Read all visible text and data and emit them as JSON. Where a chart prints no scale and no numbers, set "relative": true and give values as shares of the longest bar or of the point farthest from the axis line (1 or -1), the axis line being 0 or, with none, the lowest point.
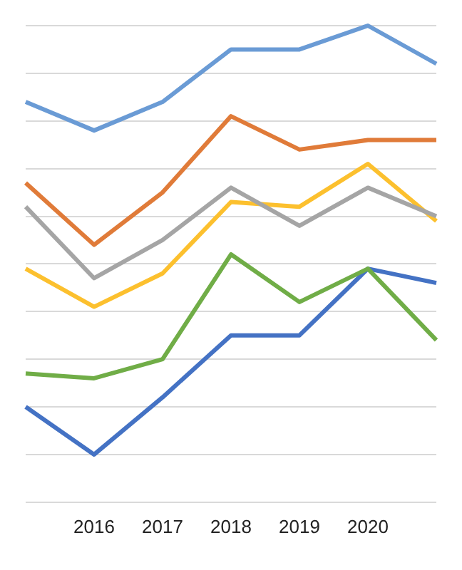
{
  "chart_data": {
    "type": "line",
    "relative": true,
    "grid": "y",
    "legend": false,
    "marker": "none",
    "line_style": "solid",
    "categories": [
      null,
      "2016",
      "2017",
      "2018",
      "2019",
      "2020",
      null
    ],
    "series": [
      {
        "color": "#6a9bd5",
        "values": [
          0.84,
          0.78,
          0.84,
          0.95,
          0.95,
          1,
          0.92
        ]
      },
      {
        "color": "#e07b39",
        "values": [
          0.67,
          0.54,
          0.65,
          0.81,
          0.74,
          0.76,
          0.76
        ]
      },
      {
        "color": "#a5a5a5",
        "values": [
          0.62,
          0.47,
          0.55,
          0.66,
          0.58,
          0.66,
          0.6
        ]
      },
      {
        "color": "#fcc02e",
        "values": [
          0.49,
          0.41,
          0.48,
          0.63,
          0.62,
          0.71,
          0.59
        ]
      },
      {
        "color": "#70ad47",
        "values": [
          0.27,
          0.26,
          0.3,
          0.52,
          0.42,
          0.49,
          0.34
        ]
      },
      {
        "color": "#4472c4",
        "values": [
          0.2,
          0.1,
          0.22,
          0.35,
          0.35,
          0.49,
          0.46
        ]
      }
    ]
  }
}
